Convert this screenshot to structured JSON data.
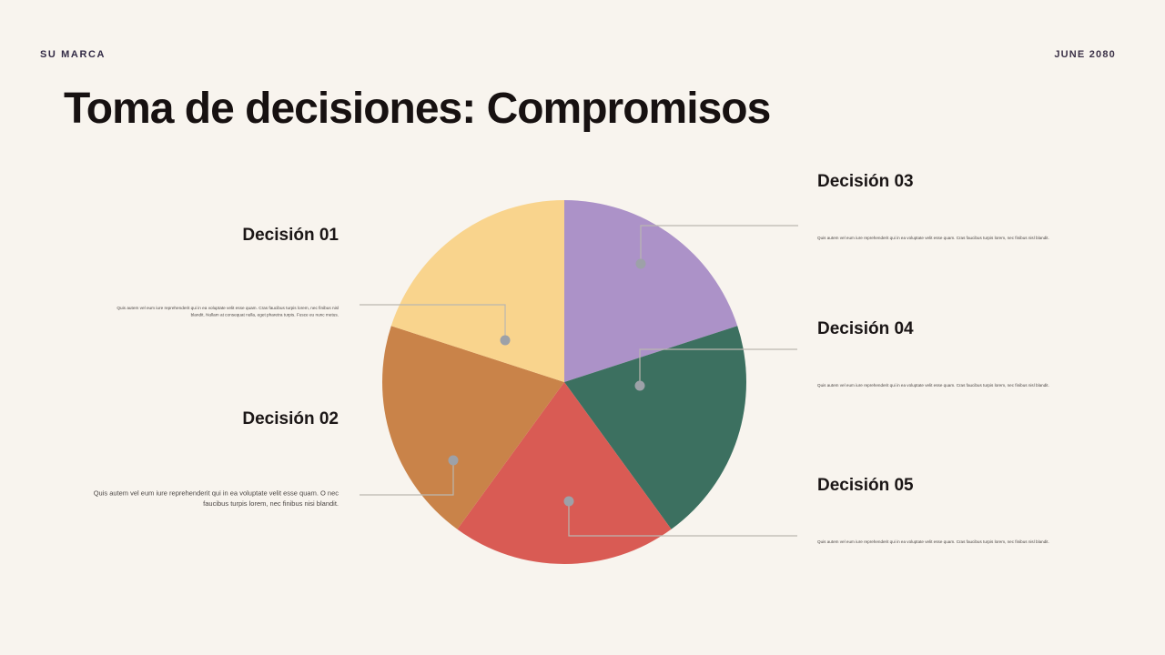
{
  "background_color": "#F8F4EE",
  "header": {
    "brand": "SU MARCA",
    "date": "JUNE 2080"
  },
  "title": "Toma de decisiones: Compromisos",
  "decisions": [
    {
      "title": "Decisión 01",
      "description": "Quis autem vel eum iure reprehenderit qui in ea voluptate velit esse quam. Cras faucibus turpis lorem, nec finibus nisl blandit. Nullam at consequat nulla, eget pharetra turpis. Fusce eu nunc metus."
    },
    {
      "title": "Decisión 02",
      "description": "Quis autem vel eum iure reprehenderit qui in ea voluptate velit esse quam. O nec faucibus turpis lorem, nec finibus nisi blandit."
    },
    {
      "title": "Decisión 03",
      "description": "Quis autem vel eum iure reprehenderit qui in ea voluptate velit esse quam. Cras faucibus turpis lorem, nec finibus nisl blandit."
    },
    {
      "title": "Decisión 04",
      "description": "Quis autem vel eum iure reprehenderit qui in ea voluptate velit esse quam. Cras faucibus turpis lorem, nec finibus nisl blandit."
    },
    {
      "title": "Decisión 05",
      "description": "Quis autem vel eum iure reprehenderit qui in ea voluptate velit esse quam. Cras faucibus turpis lorem, nec finibus nisl blandit."
    }
  ],
  "chart_data": {
    "type": "pie",
    "title": "Toma de decisiones: Compromisos",
    "start_angle_deg": 0,
    "direction": "clockwise",
    "legend_position": "callout-labels",
    "slices": [
      {
        "label": "Decisión 03",
        "value_pct": 20,
        "color": "#AC92C8"
      },
      {
        "label": "Decisión 04",
        "value_pct": 20,
        "color": "#3C7060"
      },
      {
        "label": "Decisión 05",
        "value_pct": 20,
        "color": "#D95B54"
      },
      {
        "label": "Decisión 02",
        "value_pct": 20,
        "color": "#C98349"
      },
      {
        "label": "Decisión 01",
        "value_pct": 20,
        "color": "#F9D48D"
      }
    ],
    "leader_line_color": "#BAB7B0",
    "leader_dot_color": "#9DA1A8"
  }
}
